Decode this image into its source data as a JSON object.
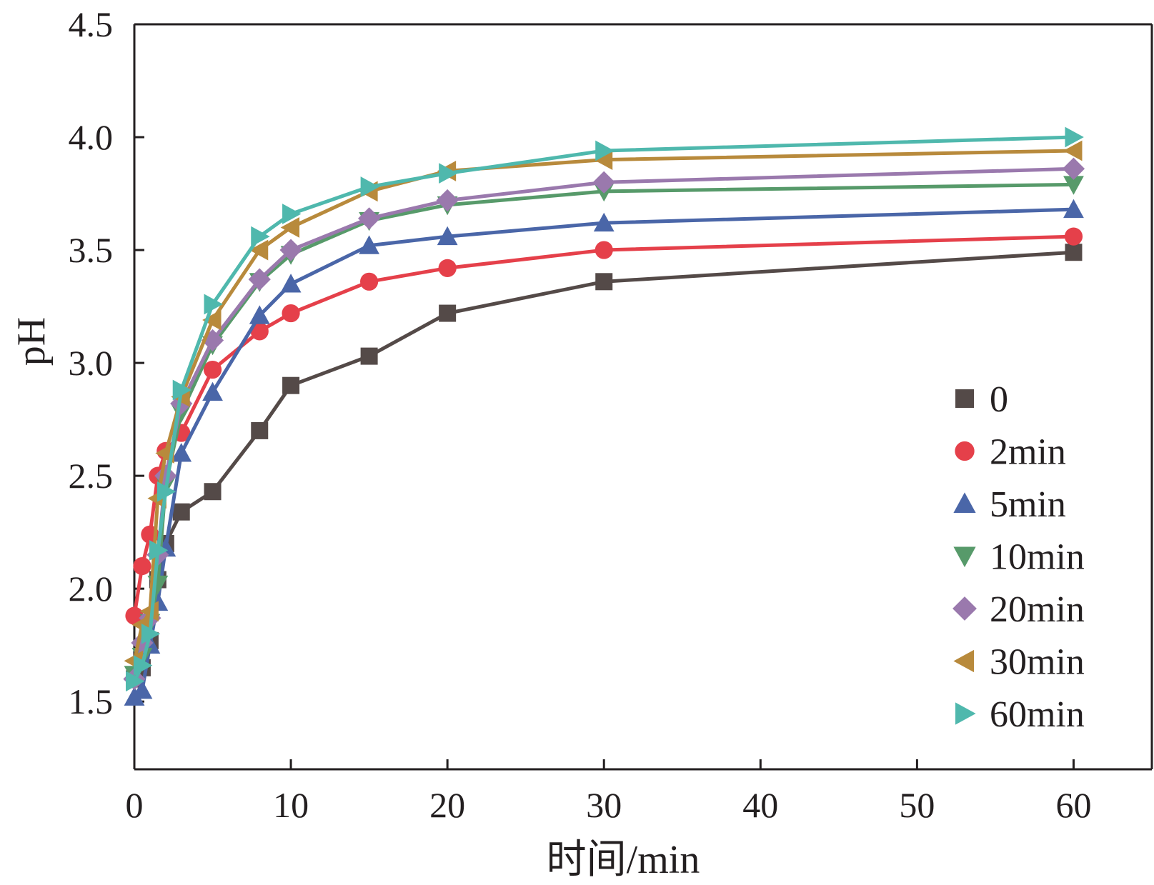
{
  "chart_data": {
    "type": "line",
    "title": "",
    "xlabel": "时间/min",
    "ylabel": "pH",
    "xlim": [
      0,
      65
    ],
    "ylim": [
      1.2,
      4.5
    ],
    "xticks": [
      0,
      10,
      20,
      30,
      40,
      50,
      60
    ],
    "yticks": [
      1.5,
      2.0,
      2.5,
      3.0,
      3.5,
      4.0,
      4.5
    ],
    "xtick_labels": [
      "0",
      "10",
      "20",
      "30",
      "40",
      "50",
      "60"
    ],
    "ytick_labels": [
      "1.5",
      "2.0",
      "2.5",
      "3.0",
      "3.5",
      "4.0",
      "4.5"
    ],
    "legend_position": "lower-right",
    "series": [
      {
        "name": "0",
        "color": "#544a48",
        "marker": "square",
        "x": [
          0,
          0.5,
          1,
          1.5,
          2,
          3,
          5,
          8,
          10,
          15,
          20,
          30,
          60
        ],
        "y": [
          1.6,
          1.65,
          1.77,
          2.04,
          2.2,
          2.34,
          2.43,
          2.7,
          2.9,
          3.03,
          3.22,
          3.36,
          3.49
        ]
      },
      {
        "name": "2min",
        "color": "#e5404a",
        "marker": "circle",
        "x": [
          0,
          0.5,
          1,
          1.5,
          2,
          3,
          5,
          8,
          10,
          15,
          20,
          30,
          60
        ],
        "y": [
          1.88,
          2.1,
          2.24,
          2.5,
          2.61,
          2.69,
          2.97,
          3.14,
          3.22,
          3.36,
          3.42,
          3.5,
          3.56
        ]
      },
      {
        "name": "5min",
        "color": "#4a66a8",
        "marker": "triangle-up",
        "x": [
          0,
          0.5,
          1,
          1.5,
          2,
          3,
          5,
          8,
          10,
          15,
          20,
          30,
          60
        ],
        "y": [
          1.52,
          1.55,
          1.75,
          1.94,
          2.18,
          2.6,
          2.87,
          3.21,
          3.35,
          3.52,
          3.56,
          3.62,
          3.68
        ]
      },
      {
        "name": "10min",
        "color": "#579a6a",
        "marker": "triangle-down",
        "x": [
          0,
          0.5,
          1,
          1.5,
          2,
          3,
          5,
          8,
          10,
          15,
          20,
          30,
          60
        ],
        "y": [
          1.62,
          1.7,
          1.85,
          2.02,
          2.46,
          2.78,
          3.08,
          3.36,
          3.48,
          3.63,
          3.7,
          3.76,
          3.79
        ]
      },
      {
        "name": "20min",
        "color": "#9a79ad",
        "marker": "diamond",
        "x": [
          0,
          0.5,
          1,
          1.5,
          2,
          3,
          5,
          8,
          10,
          15,
          20,
          30,
          60
        ],
        "y": [
          1.6,
          1.76,
          1.87,
          2.15,
          2.5,
          2.82,
          3.1,
          3.37,
          3.5,
          3.64,
          3.72,
          3.8,
          3.86
        ]
      },
      {
        "name": "30min",
        "color": "#b88a3c",
        "marker": "triangle-left",
        "x": [
          0,
          0.5,
          1,
          1.5,
          2,
          3,
          5,
          8,
          10,
          15,
          20,
          30,
          60
        ],
        "y": [
          1.68,
          1.84,
          1.9,
          2.4,
          2.6,
          2.85,
          3.19,
          3.5,
          3.6,
          3.76,
          3.85,
          3.9,
          3.94
        ]
      },
      {
        "name": "60min",
        "color": "#4fb8ad",
        "marker": "triangle-right",
        "x": [
          0,
          0.5,
          1,
          1.5,
          2,
          3,
          5,
          8,
          10,
          15,
          20,
          30,
          60
        ],
        "y": [
          1.59,
          1.66,
          1.8,
          2.17,
          2.43,
          2.88,
          3.26,
          3.56,
          3.66,
          3.78,
          3.84,
          3.94,
          4.0
        ]
      }
    ]
  }
}
